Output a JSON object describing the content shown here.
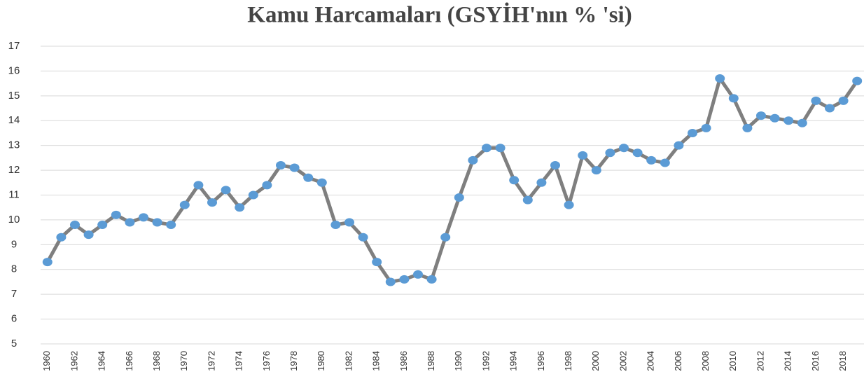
{
  "chart_data": {
    "type": "line",
    "title": "Kamu Harcamaları (GSYİH'nın  % 'si)",
    "categories": [
      "1960",
      null,
      "1962",
      null,
      "1964",
      null,
      "1966",
      null,
      "1968",
      null,
      "1970",
      null,
      "1972",
      null,
      "1974",
      null,
      "1976",
      null,
      "1978",
      null,
      "1980",
      null,
      "1982",
      null,
      "1984",
      null,
      "1986",
      null,
      "1988",
      null,
      "1990",
      null,
      "1992",
      null,
      "1994",
      null,
      "1996",
      null,
      "1998",
      null,
      "2000",
      null,
      "2002",
      null,
      "2004",
      null,
      "2006",
      null,
      "2008",
      null,
      "2010",
      null,
      "2012",
      null,
      "2014",
      null,
      "2016",
      null,
      "2018",
      null
    ],
    "values": [
      8.3,
      9.3,
      9.8,
      9.4,
      9.8,
      10.2,
      9.9,
      10.1,
      9.9,
      9.8,
      10.6,
      11.4,
      10.7,
      11.2,
      10.5,
      11.0,
      11.4,
      12.2,
      12.1,
      11.7,
      11.5,
      9.8,
      9.9,
      9.3,
      8.3,
      7.5,
      7.6,
      7.8,
      7.6,
      9.3,
      10.9,
      12.4,
      12.9,
      12.9,
      11.6,
      10.8,
      11.5,
      12.2,
      10.6,
      12.6,
      12.0,
      12.7,
      12.9,
      12.7,
      12.4,
      12.3,
      13.0,
      13.5,
      13.7,
      15.7,
      14.9,
      13.7,
      14.2,
      14.1,
      14.0,
      13.9,
      14.8,
      14.5,
      14.8,
      15.6
    ],
    "color": "#7f7f7f",
    "marker_color": "#5b9bd5",
    "ylim": [
      5,
      17
    ],
    "yticks": [
      5,
      6,
      7,
      8,
      9,
      10,
      11,
      12,
      13,
      14,
      15,
      16,
      17
    ],
    "grid": true
  }
}
